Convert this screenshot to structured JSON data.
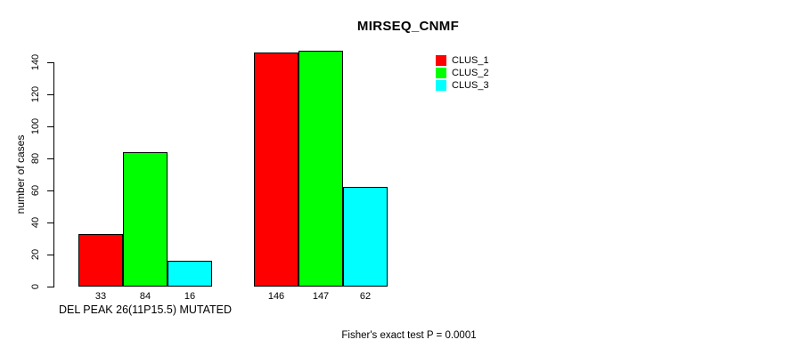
{
  "chart_data": {
    "type": "bar",
    "title": "MIRSEQ_CNMF",
    "ylabel": "number of cases",
    "xlabel": "",
    "ylim": [
      0,
      140
    ],
    "yticks": [
      0,
      20,
      40,
      60,
      80,
      100,
      120,
      140
    ],
    "grid": false,
    "legend_position": "top-right",
    "series": [
      {
        "name": "CLUS_1",
        "color": "#FF0000"
      },
      {
        "name": "CLUS_2",
        "color": "#00FF00"
      },
      {
        "name": "CLUS_3",
        "color": "#00FFFF"
      }
    ],
    "groups": [
      {
        "label": "DEL PEAK 26(11P15.5) MUTATED",
        "values": [
          33,
          84,
          16
        ]
      },
      {
        "label": "",
        "values": [
          146,
          147,
          62
        ]
      }
    ],
    "bar_value_labels_shown": true,
    "annotation": "Fisher's exact test P = 0.0001"
  }
}
